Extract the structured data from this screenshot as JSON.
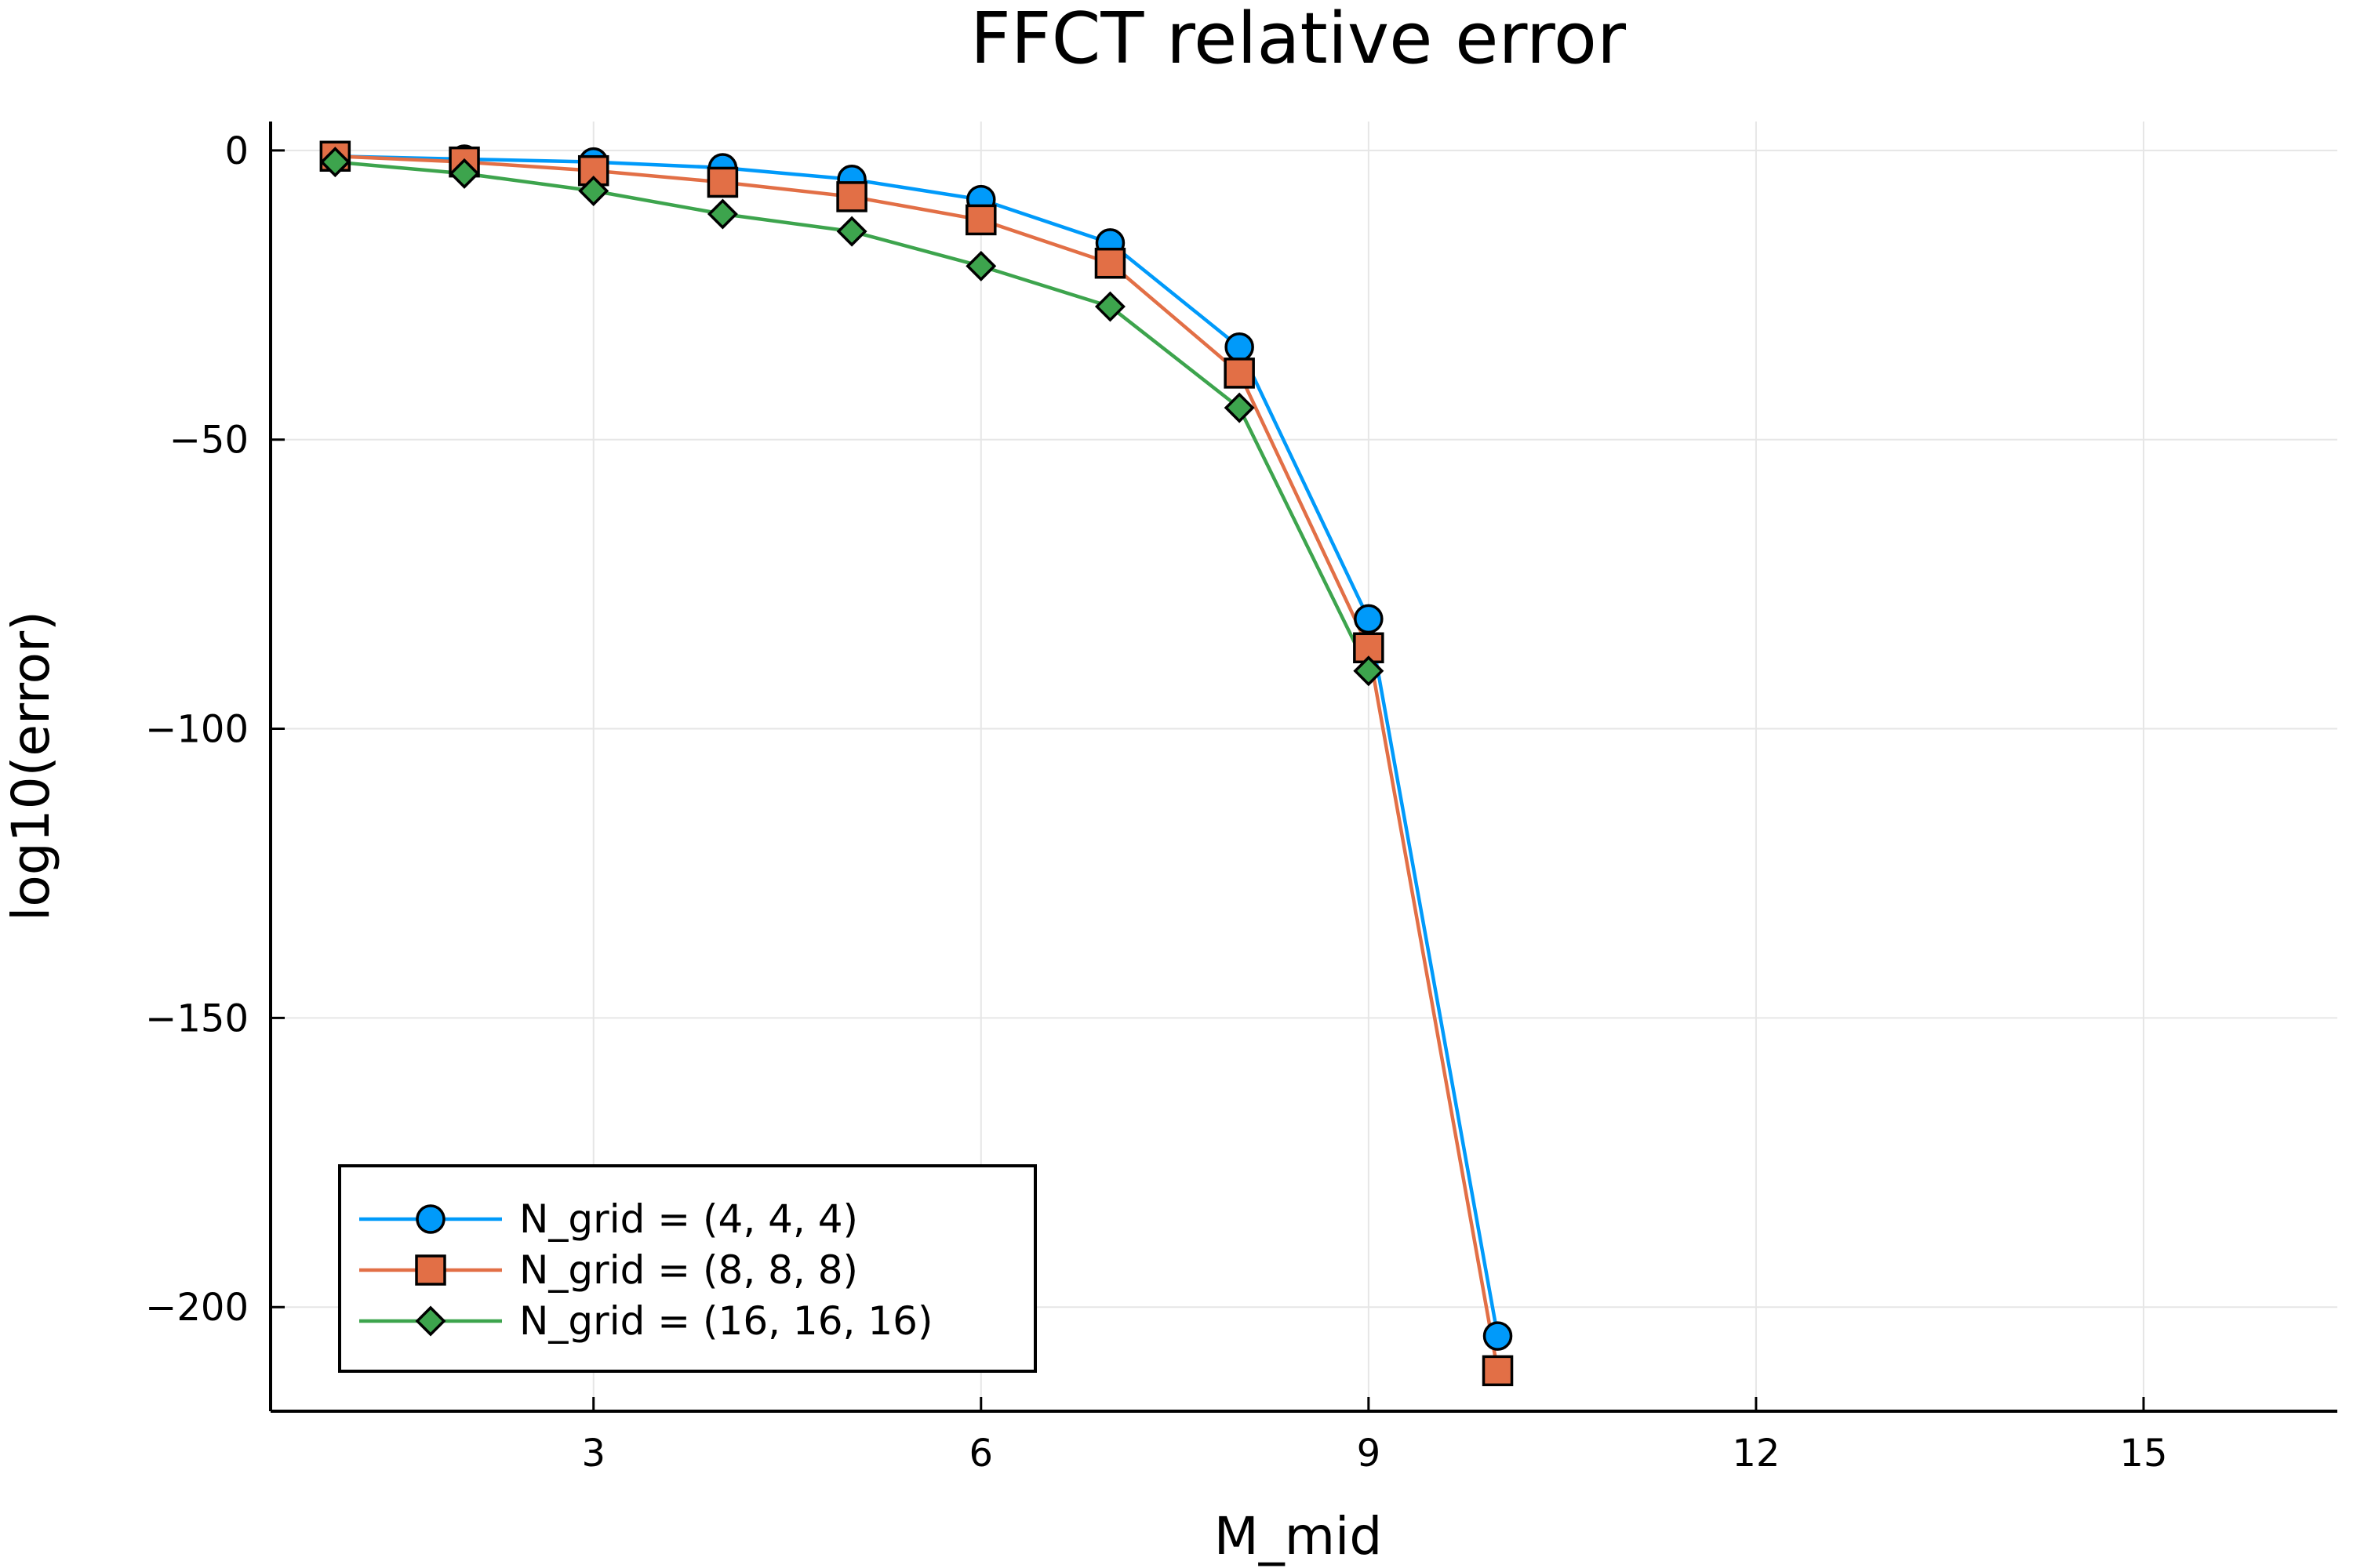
{
  "chart_data": {
    "type": "line",
    "title": "FFCT relative error",
    "xlabel": "M_mid",
    "ylabel": "log10(error)",
    "xlim": [
      0.5,
      16.5
    ],
    "ylim": [
      -218,
      5
    ],
    "xticks": [
      3,
      6,
      9,
      12,
      15
    ],
    "yticks": [
      0,
      -50,
      -100,
      -150,
      -200
    ],
    "xtick_labels": [
      "3",
      "6",
      "9",
      "12",
      "15"
    ],
    "ytick_labels": [
      "0",
      "−50",
      "−100",
      "−150",
      "−200"
    ],
    "grid": true,
    "legend_position": "bottom-left",
    "x": [
      1,
      2,
      3,
      4,
      5,
      6,
      7,
      8,
      9,
      10
    ],
    "series": [
      {
        "name": "N_grid = (4, 4, 4)",
        "color": "#009AFA",
        "marker": "circle",
        "values": [
          -1,
          -1.5,
          -2,
          -3,
          -5,
          -8.5,
          -16,
          -34,
          -81,
          -205
        ]
      },
      {
        "name": "N_grid = (8, 8, 8)",
        "color": "#E26F46",
        "marker": "square",
        "values": [
          -1,
          -2,
          -3.5,
          -5.5,
          -8,
          -12,
          -19.5,
          -38.5,
          -86,
          -211
        ]
      },
      {
        "name": "N_grid = (16, 16, 16)",
        "color": "#3DA44D",
        "marker": "diamond",
        "values": [
          -2,
          -4,
          -7,
          -11,
          -14,
          -20,
          -27,
          -44.5,
          -90,
          null
        ]
      }
    ]
  }
}
